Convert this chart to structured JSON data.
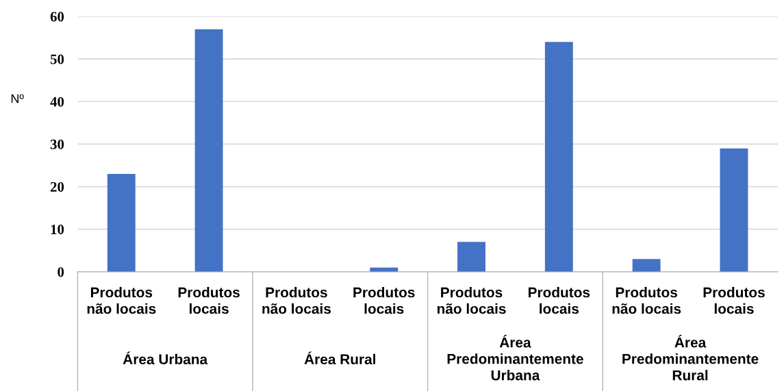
{
  "chart_data": {
    "type": "bar",
    "ylabel": "Nº",
    "categories": [
      "Produtos não locais",
      "Produtos locais",
      "Produtos não locais",
      "Produtos locais",
      "Produtos não locais",
      "Produtos locais",
      "Produtos não locais",
      "Produtos locais"
    ],
    "values": [
      23,
      57,
      0,
      1,
      7,
      54,
      3,
      29
    ],
    "color": "#4472c4",
    "ylim": [
      0,
      60
    ],
    "yticks": [
      0,
      10,
      20,
      30,
      40,
      50,
      60
    ],
    "grid": "y",
    "annotations": [
      "Área Urbana",
      "Área Rural",
      "Área Predominantemente Urbana",
      "Área Predominantemente Rural"
    ]
  }
}
